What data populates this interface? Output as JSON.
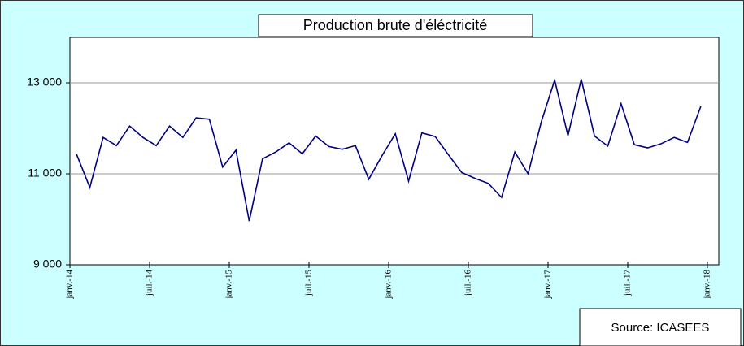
{
  "chart_data": {
    "type": "line",
    "title": "Production brute d'éléctricité",
    "source": "Source: ICASEES",
    "x": [
      0.5,
      1.5,
      2.5,
      3.5,
      4.5,
      5.5,
      6.5,
      7.5,
      8.5,
      9.5,
      10.5,
      11.5,
      12.5,
      13.5,
      14.5,
      15.5,
      16.5,
      17.5,
      18.5,
      19.5,
      20.5,
      21.5,
      22.5,
      23.5,
      24.5,
      25.5,
      26.5,
      27.5,
      28.5,
      29.5,
      30.5,
      31.5,
      32.5,
      33.5,
      34.5,
      35.5,
      36.5,
      37.5,
      38.5,
      39.5,
      40.5,
      41.5,
      42.5,
      43.5,
      44.5,
      45.5,
      46.5,
      47.5
    ],
    "series": [
      {
        "name": "Production brute",
        "color": "#000080",
        "values": [
          11430,
          10700,
          11800,
          11620,
          12050,
          11800,
          11620,
          12050,
          11800,
          12230,
          12200,
          11150,
          11520,
          9960,
          11330,
          11480,
          11680,
          11440,
          11830,
          11600,
          11540,
          11620,
          10880,
          11400,
          11880,
          10840,
          11900,
          11820,
          11420,
          11030,
          10900,
          10790,
          10480,
          11480,
          11000,
          12150,
          13060,
          11840,
          13080,
          11830,
          11610,
          12540,
          11640,
          11570,
          11660,
          11800,
          11690,
          12480
        ]
      }
    ],
    "xlim": [
      0,
      48
    ],
    "xticks": [
      {
        "value": 0,
        "label": "janv.-14"
      },
      {
        "value": 6,
        "label": "juil.-14"
      },
      {
        "value": 12,
        "label": "janv.-15"
      },
      {
        "value": 18,
        "label": "juil.-15"
      },
      {
        "value": 24,
        "label": "janv.-16"
      },
      {
        "value": 30,
        "label": "juil.-16"
      },
      {
        "value": 36,
        "label": "janv.-17"
      },
      {
        "value": 42,
        "label": "juil.-17"
      },
      {
        "value": 48,
        "label": "janv.-18"
      }
    ],
    "ylim": [
      9000,
      14000
    ],
    "yticks": [
      {
        "value": 9000,
        "label": "9 000"
      },
      {
        "value": 11000,
        "label": "11 000"
      },
      {
        "value": 13000,
        "label": "13 000"
      }
    ],
    "grid": true
  }
}
